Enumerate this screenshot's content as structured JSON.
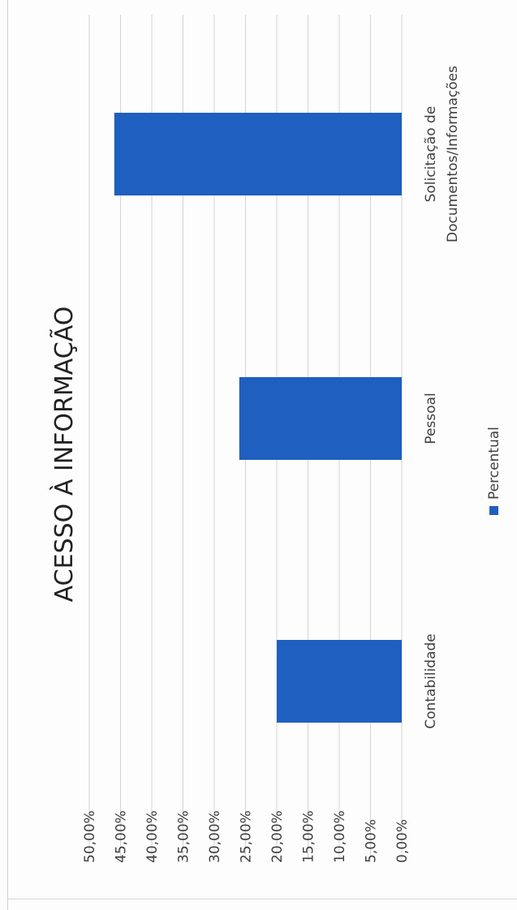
{
  "chart_data": {
    "type": "bar",
    "title": "ACESSO À INFORMAÇÃO",
    "categories": [
      "Contabilidade",
      "Pessoal",
      "Solicitação de Documentos/Informações"
    ],
    "category_label_lines": [
      [
        "Contabilidade"
      ],
      [
        "Pessoal"
      ],
      [
        "Solicitação de",
        "Documentos/Informações"
      ]
    ],
    "series": [
      {
        "name": "Percentual",
        "values": [
          20,
          26,
          46
        ]
      }
    ],
    "ylim": [
      0,
      50
    ],
    "yticks": [
      0,
      5,
      10,
      15,
      20,
      25,
      30,
      35,
      40,
      45,
      50
    ],
    "ytick_labels": [
      "0,00%",
      "5,00%",
      "10,00%",
      "15,00%",
      "20,00%",
      "25,00%",
      "30,00%",
      "35,00%",
      "40,00%",
      "45,00%",
      "50,00%"
    ],
    "xlabel": "",
    "ylabel": "",
    "grid": true,
    "legend_position": "bottom",
    "orientation": "rotated 90° counter-clockwise on the page",
    "bar_color": "#1f5fbf",
    "grid_color": "#d4d4d4"
  }
}
